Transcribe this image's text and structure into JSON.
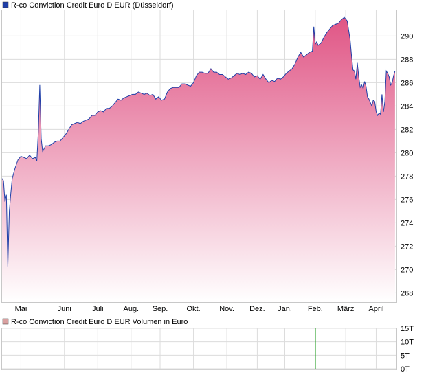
{
  "chart_data": [
    {
      "type": "area",
      "legend": "R-co Conviction Credit Euro D EUR (Düsseldorf)",
      "series_color": "#1f3fa8",
      "fill_top_color": "#e05585",
      "fill_bottom_color": "#ffffff",
      "legend_swatch_color": "#1f3fa8",
      "ylim": [
        267.2,
        292.2
      ],
      "y_ticks": [
        268,
        270,
        272,
        274,
        276,
        278,
        280,
        282,
        284,
        286,
        288,
        290
      ],
      "x_ticks": [
        "Mai",
        "Juni",
        "Juli",
        "Aug.",
        "Sep.",
        "Okt.",
        "Nov.",
        "Dez.",
        "Jan.",
        "Feb.",
        "März",
        "April"
      ],
      "x_domain": [
        0,
        272
      ],
      "x_tick_positions": [
        13,
        43,
        66,
        89,
        109,
        132,
        155,
        176,
        195,
        216,
        237,
        258
      ],
      "grid": true,
      "series": [
        {
          "points": [
            [
              0,
              277.8
            ],
            [
              1,
              277.6
            ],
            [
              2,
              275.8
            ],
            [
              3,
              276.4
            ],
            [
              4,
              270.2
            ],
            [
              5,
              275.0
            ],
            [
              6,
              276.5
            ],
            [
              7,
              277.8
            ],
            [
              9,
              278.7
            ],
            [
              11,
              279.4
            ],
            [
              13,
              279.7
            ],
            [
              15,
              279.6
            ],
            [
              17,
              279.5
            ],
            [
              19,
              279.8
            ],
            [
              21,
              279.5
            ],
            [
              23,
              279.6
            ],
            [
              24,
              279.3
            ],
            [
              25,
              281.8
            ],
            [
              26,
              285.8
            ],
            [
              27,
              281.2
            ],
            [
              28,
              280.1
            ],
            [
              30,
              280.6
            ],
            [
              32,
              280.6
            ],
            [
              34,
              280.7
            ],
            [
              36,
              280.9
            ],
            [
              38,
              281.0
            ],
            [
              40,
              281.0
            ],
            [
              42,
              281.3
            ],
            [
              44,
              281.6
            ],
            [
              46,
              282.0
            ],
            [
              48,
              282.4
            ],
            [
              50,
              282.5
            ],
            [
              52,
              282.6
            ],
            [
              54,
              282.5
            ],
            [
              56,
              282.7
            ],
            [
              58,
              282.8
            ],
            [
              60,
              282.9
            ],
            [
              62,
              283.2
            ],
            [
              64,
              283.2
            ],
            [
              66,
              283.5
            ],
            [
              68,
              283.6
            ],
            [
              70,
              283.5
            ],
            [
              72,
              283.8
            ],
            [
              74,
              283.8
            ],
            [
              76,
              284.0
            ],
            [
              78,
              284.3
            ],
            [
              80,
              284.6
            ],
            [
              82,
              284.5
            ],
            [
              84,
              284.7
            ],
            [
              86,
              284.8
            ],
            [
              88,
              284.9
            ],
            [
              90,
              285.0
            ],
            [
              92,
              285.0
            ],
            [
              94,
              285.2
            ],
            [
              96,
              285.1
            ],
            [
              98,
              285.0
            ],
            [
              100,
              285.1
            ],
            [
              102,
              284.9
            ],
            [
              104,
              285.0
            ],
            [
              106,
              284.6
            ],
            [
              108,
              284.8
            ],
            [
              110,
              284.5
            ],
            [
              112,
              284.6
            ],
            [
              114,
              285.2
            ],
            [
              116,
              285.5
            ],
            [
              118,
              285.6
            ],
            [
              120,
              285.6
            ],
            [
              122,
              285.6
            ],
            [
              124,
              285.9
            ],
            [
              126,
              285.9
            ],
            [
              128,
              285.8
            ],
            [
              130,
              285.7
            ],
            [
              132,
              286.0
            ],
            [
              134,
              286.6
            ],
            [
              136,
              286.9
            ],
            [
              138,
              286.9
            ],
            [
              140,
              286.8
            ],
            [
              142,
              286.8
            ],
            [
              144,
              287.2
            ],
            [
              146,
              286.9
            ],
            [
              148,
              286.9
            ],
            [
              150,
              286.7
            ],
            [
              152,
              286.7
            ],
            [
              154,
              286.5
            ],
            [
              156,
              286.3
            ],
            [
              158,
              286.4
            ],
            [
              160,
              286.6
            ],
            [
              162,
              286.8
            ],
            [
              164,
              286.7
            ],
            [
              166,
              286.8
            ],
            [
              168,
              286.7
            ],
            [
              170,
              286.9
            ],
            [
              172,
              286.8
            ],
            [
              174,
              286.5
            ],
            [
              176,
              286.6
            ],
            [
              178,
              286.3
            ],
            [
              180,
              286.7
            ],
            [
              182,
              286.3
            ],
            [
              184,
              286.0
            ],
            [
              186,
              286.2
            ],
            [
              188,
              286.1
            ],
            [
              190,
              286.4
            ],
            [
              192,
              286.3
            ],
            [
              194,
              286.5
            ],
            [
              196,
              286.8
            ],
            [
              198,
              287.0
            ],
            [
              200,
              287.2
            ],
            [
              202,
              287.6
            ],
            [
              204,
              288.2
            ],
            [
              206,
              288.6
            ],
            [
              208,
              288.2
            ],
            [
              210,
              288.4
            ],
            [
              212,
              288.6
            ],
            [
              214,
              288.7
            ],
            [
              215,
              290.8
            ],
            [
              216,
              289.3
            ],
            [
              217,
              289.5
            ],
            [
              218,
              289.2
            ],
            [
              220,
              289.4
            ],
            [
              222,
              289.9
            ],
            [
              224,
              290.3
            ],
            [
              226,
              290.6
            ],
            [
              228,
              290.9
            ],
            [
              230,
              291.0
            ],
            [
              232,
              291.1
            ],
            [
              234,
              291.4
            ],
            [
              236,
              291.6
            ],
            [
              238,
              291.3
            ],
            [
              240,
              289.7
            ],
            [
              241,
              288.3
            ],
            [
              242,
              287.1
            ],
            [
              243,
              287.0
            ],
            [
              244,
              286.3
            ],
            [
              245,
              287.7
            ],
            [
              246,
              286.5
            ],
            [
              247,
              285.6
            ],
            [
              248,
              285.8
            ],
            [
              249,
              285.5
            ],
            [
              250,
              286.1
            ],
            [
              251,
              285.7
            ],
            [
              252,
              284.8
            ],
            [
              253,
              284.6
            ],
            [
              254,
              284.3
            ],
            [
              255,
              284.0
            ],
            [
              256,
              284.5
            ],
            [
              257,
              284.4
            ],
            [
              258,
              283.5
            ],
            [
              259,
              283.2
            ],
            [
              260,
              283.4
            ],
            [
              261,
              283.3
            ],
            [
              262,
              285.0
            ],
            [
              263,
              283.5
            ],
            [
              264,
              284.4
            ],
            [
              265,
              287.0
            ],
            [
              266,
              286.8
            ],
            [
              267,
              286.5
            ],
            [
              268,
              285.8
            ],
            [
              269,
              286.0
            ],
            [
              270,
              286.6
            ],
            [
              271,
              287.0
            ]
          ]
        }
      ]
    },
    {
      "type": "bar",
      "legend": "R-co Conviction Credit Euro D EUR Volumen in Euro",
      "legend_swatch_color": "#d9a0a0",
      "bar_color": "#1a9b1a",
      "y_ticks": [
        "0T",
        "5T",
        "10T",
        "15T"
      ],
      "ylim": [
        0,
        15
      ],
      "grid": true,
      "bars": [
        {
          "x": 216,
          "value": 15
        }
      ]
    }
  ]
}
